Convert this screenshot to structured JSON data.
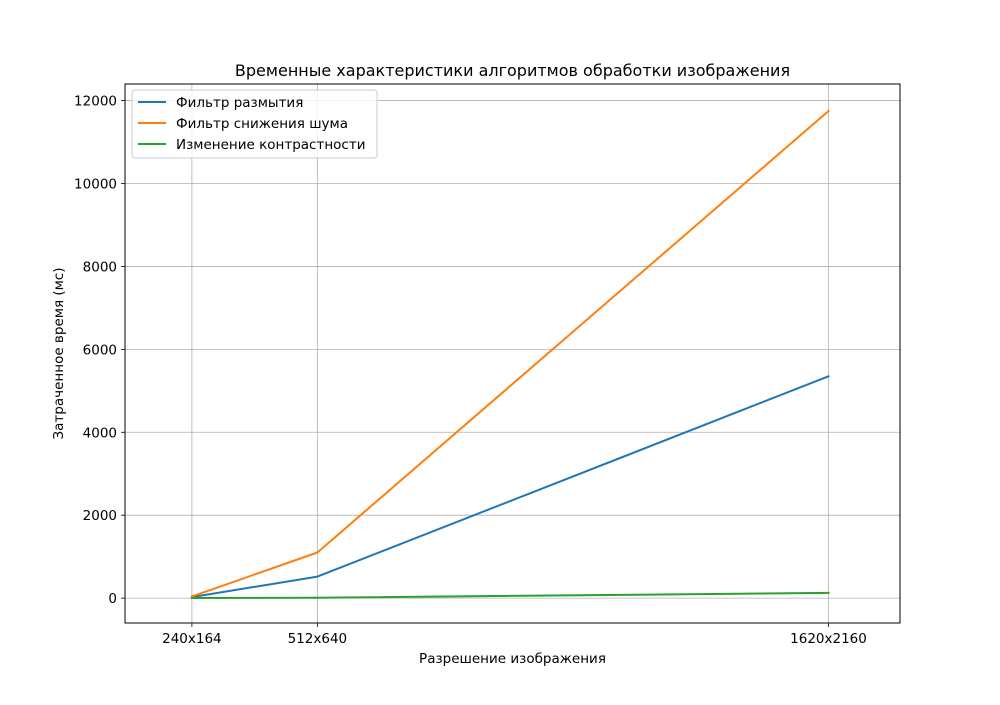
{
  "chart_data": {
    "type": "line",
    "title": "Временные характеристики алгоритмов обработки изображения",
    "xlabel": "Разрешение изображения",
    "ylabel": "Затраченное время (мс)",
    "x_scale": "linear",
    "x_quantity": "image width (px) shown with its resolution label",
    "x": [
      240,
      512,
      1620
    ],
    "x_tick_labels": [
      "240x164",
      "512x640",
      "1620x2160"
    ],
    "xlim": [
      95,
      1775
    ],
    "ylim": [
      -600,
      12400
    ],
    "y_ticks": [
      0,
      2000,
      4000,
      6000,
      8000,
      10000,
      12000
    ],
    "y_tick_labels": [
      "0",
      "2000",
      "4000",
      "6000",
      "8000",
      "10000",
      "12000"
    ],
    "grid": true,
    "legend_position": "top-left",
    "series": [
      {
        "name": "Фильтр размытия",
        "color": "#1f77b4",
        "values": [
          25,
          520,
          5350
        ]
      },
      {
        "name": "Фильтр снижения шума",
        "color": "#ff7f0e",
        "values": [
          40,
          1100,
          11750
        ]
      },
      {
        "name": "Изменение контрастности",
        "color": "#2ca02c",
        "values": [
          2,
          10,
          125
        ]
      }
    ]
  }
}
